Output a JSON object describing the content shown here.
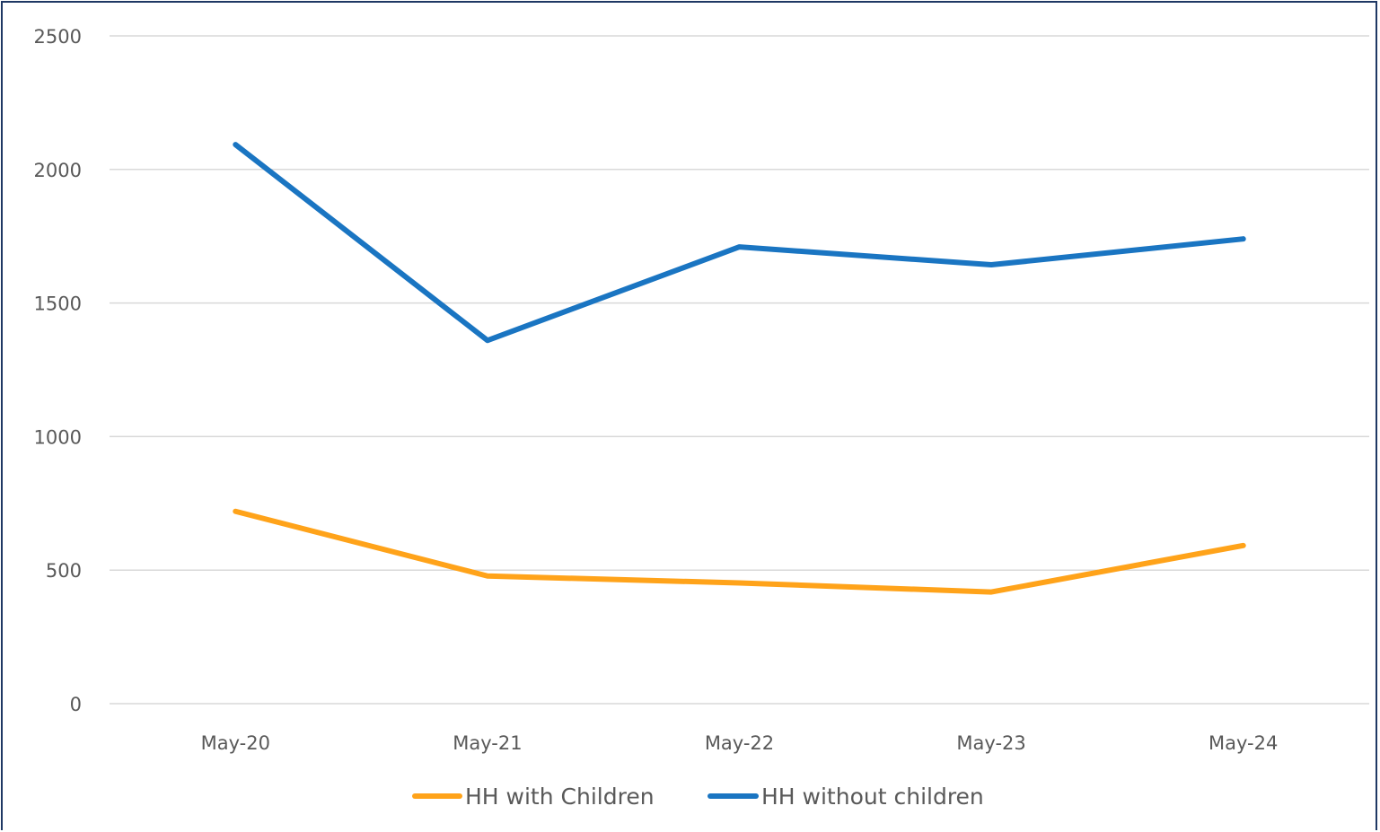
{
  "chart_data": {
    "type": "line",
    "categories": [
      "May-20",
      "May-21",
      "May-22",
      "May-23",
      "May-24"
    ],
    "series": [
      {
        "name": "HH with Children",
        "values": [
          720,
          478,
          452,
          418,
          592
        ],
        "color": "#ffa31a"
      },
      {
        "name": "HH without children",
        "values": [
          2093,
          1360,
          1710,
          1643,
          1740
        ],
        "color": "#1a75c2"
      }
    ],
    "ylim": [
      0,
      2500
    ],
    "yticks": [
      "0",
      "500",
      "1000",
      "1500",
      "2000",
      "2500"
    ],
    "grid": true,
    "legend": "bottom",
    "title": "",
    "xlabel": "",
    "ylabel": ""
  }
}
